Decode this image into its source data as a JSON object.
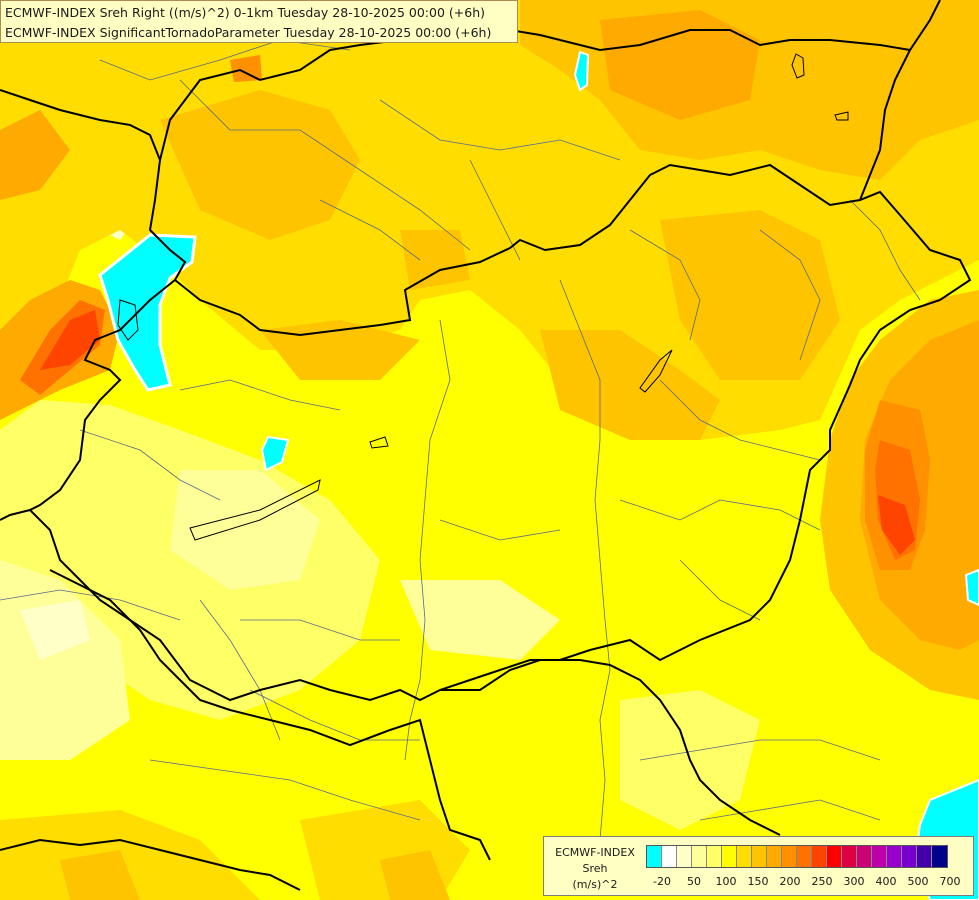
{
  "title_lines": [
    "ECMWF-INDEX Sreh Right ((m/s)^2) 0-1km Tuesday 28-10-2025 00:00 (+6h)",
    "ECMWF-INDEX SignificantTornadoParameter Tuesday 28-10-2025 00:00 (+6h)"
  ],
  "legend": {
    "title": "ECMWF-INDEX",
    "param": "Sreh",
    "unit": "(m/s)^2",
    "tick_labels": [
      "-20",
      "50",
      "100",
      "150",
      "200",
      "250",
      "300",
      "400",
      "500",
      "700"
    ],
    "colors": [
      "#00ffff",
      "#ffffff",
      "#ffffc8",
      "#ffff99",
      "#ffff66",
      "#ffff00",
      "#ffdd00",
      "#ffc400",
      "#ffaa00",
      "#ff9000",
      "#ff7200",
      "#ff4400",
      "#ff0000",
      "#dd0044",
      "#cc0077",
      "#bb00aa",
      "#9900cc",
      "#7700cc",
      "#4400aa",
      "#000088"
    ]
  },
  "map_colors": {
    "bg": "#ffff00",
    "pale": "#ffff99",
    "paler": "#ffffc8",
    "gold": "#ffdd00",
    "amber": "#ffc400",
    "orange": "#ffaa00",
    "deep_orange": "#ff9000",
    "red_orange": "#ff7200",
    "red": "#ff4400",
    "cyan": "#00ffff",
    "border": "#000000",
    "river": "#5a6a8a"
  }
}
